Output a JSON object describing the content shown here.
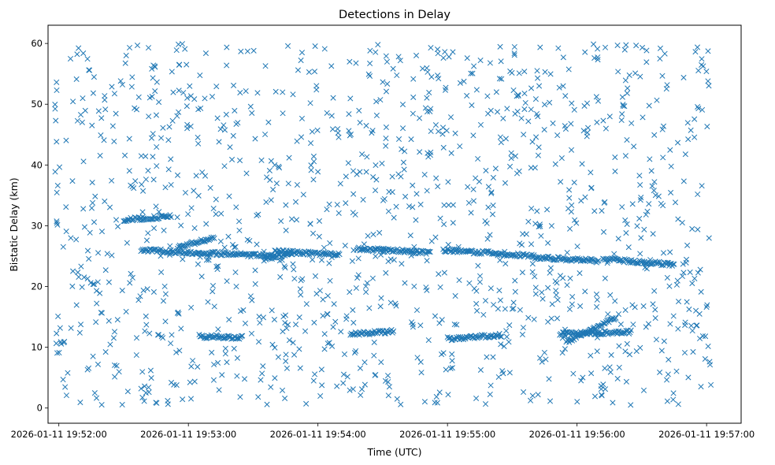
{
  "chart_data": {
    "type": "scatter",
    "title": "Detections in Delay",
    "xlabel": "Time (UTC)",
    "ylabel": "Bistatic Delay (km)",
    "x_ticks": [
      "2026-01-11 19:52:00",
      "2026-01-11 19:53:00",
      "2026-01-11 19:54:00",
      "2026-01-11 19:55:00",
      "2026-01-11 19:56:00",
      "2026-01-11 19:57:00"
    ],
    "y_ticks": [
      "0",
      "10",
      "20",
      "30",
      "40",
      "50",
      "60"
    ],
    "xlim": [
      "2026-01-11 19:51:55",
      "2026-01-11 19:57:16"
    ],
    "ylim": [
      -2.5,
      63
    ],
    "grid": false,
    "marker": "x",
    "color": "#1f77b4",
    "tracks": [
      {
        "x_start": "2026-01-11 19:52:38",
        "x_end": "2026-01-11 19:53:10",
        "y_start": 26.0,
        "y_end": 25.4
      },
      {
        "x_start": "2026-01-11 19:53:10",
        "x_end": "2026-01-11 19:53:40",
        "y_start": 25.5,
        "y_end": 25.0
      },
      {
        "x_start": "2026-01-11 19:53:40",
        "x_end": "2026-01-11 19:54:10",
        "y_start": 25.8,
        "y_end": 25.2
      },
      {
        "x_start": "2026-01-11 19:54:18",
        "x_end": "2026-01-11 19:54:52",
        "y_start": 26.2,
        "y_end": 25.6
      },
      {
        "x_start": "2026-01-11 19:54:58",
        "x_end": "2026-01-11 19:55:20",
        "y_start": 26.0,
        "y_end": 25.5
      },
      {
        "x_start": "2026-01-11 19:55:20",
        "x_end": "2026-01-11 19:55:40",
        "y_start": 25.5,
        "y_end": 25.0
      },
      {
        "x_start": "2026-01-11 19:55:40",
        "x_end": "2026-01-11 19:56:10",
        "y_start": 24.8,
        "y_end": 24.2
      },
      {
        "x_start": "2026-01-11 19:56:12",
        "x_end": "2026-01-11 19:56:45",
        "y_start": 24.5,
        "y_end": 23.6
      },
      {
        "x_start": "2026-01-11 19:52:30",
        "x_end": "2026-01-11 19:52:52",
        "y_start": 31.0,
        "y_end": 31.5
      },
      {
        "x_start": "2026-01-11 19:52:55",
        "x_end": "2026-01-11 19:53:12",
        "y_start": 26.5,
        "y_end": 28.0
      },
      {
        "x_start": "2026-01-11 19:53:05",
        "x_end": "2026-01-11 19:53:25",
        "y_start": 11.8,
        "y_end": 11.6
      },
      {
        "x_start": "2026-01-11 19:54:15",
        "x_end": "2026-01-11 19:54:35",
        "y_start": 12.2,
        "y_end": 12.6
      },
      {
        "x_start": "2026-01-11 19:55:00",
        "x_end": "2026-01-11 19:55:25",
        "y_start": 11.4,
        "y_end": 12.0
      },
      {
        "x_start": "2026-01-11 19:55:52",
        "x_end": "2026-01-11 19:56:25",
        "y_start": 12.2,
        "y_end": 12.5
      },
      {
        "x_start": "2026-01-11 19:55:55",
        "x_end": "2026-01-11 19:56:18",
        "y_start": 10.8,
        "y_end": 15.0
      },
      {
        "x_start": "2026-01-11 19:53:35",
        "x_end": "2026-01-11 19:53:48",
        "y_start": 24.5,
        "y_end": 25.5
      }
    ],
    "random_points": {
      "count": 1250,
      "x_start": "2026-01-11 19:51:58",
      "x_end": "2026-01-11 19:57:02",
      "y_min": 0.5,
      "y_max": 60
    }
  }
}
